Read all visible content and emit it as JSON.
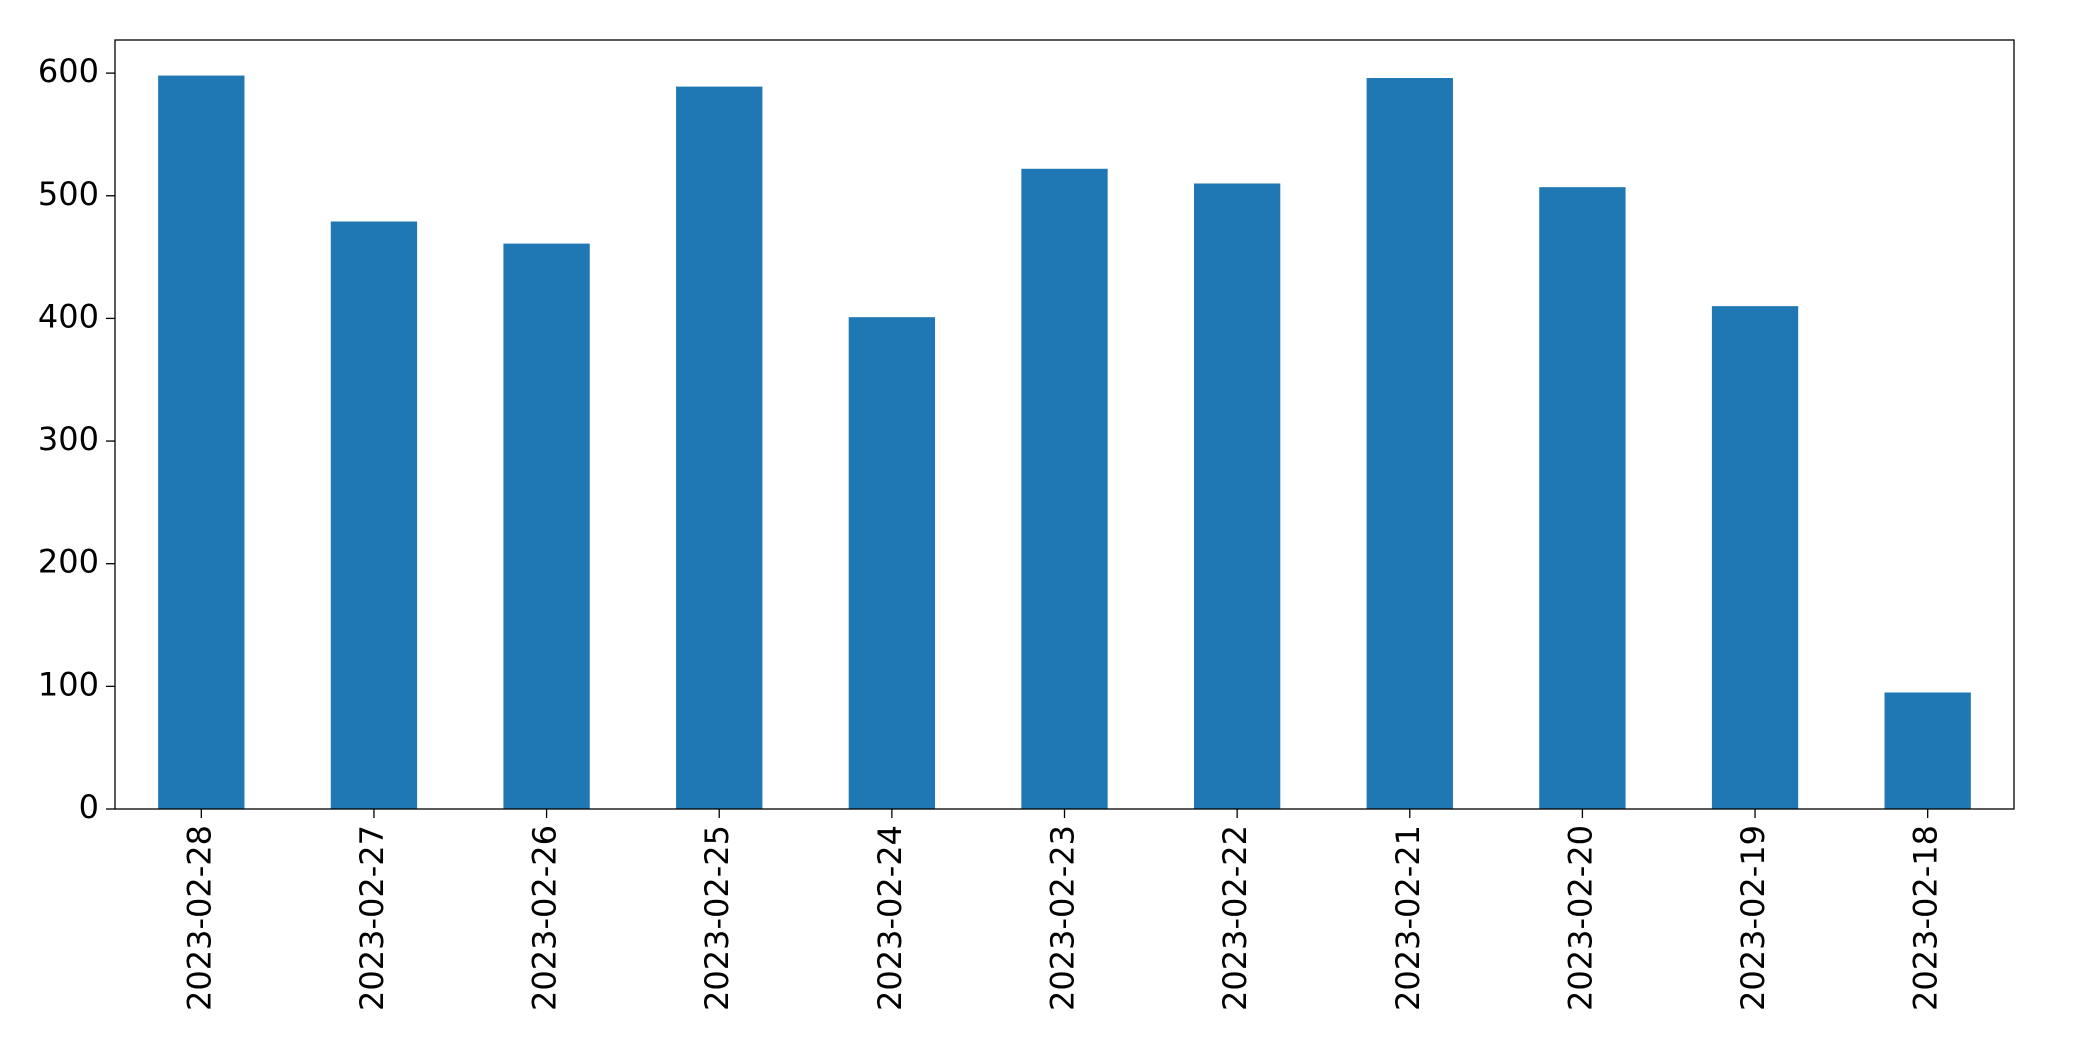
{
  "chart_data": {
    "type": "bar",
    "categories": [
      "2023-02-28",
      "2023-02-27",
      "2023-02-26",
      "2023-02-25",
      "2023-02-24",
      "2023-02-23",
      "2023-02-22",
      "2023-02-21",
      "2023-02-20",
      "2023-02-19",
      "2023-02-18"
    ],
    "values": [
      598,
      479,
      461,
      589,
      401,
      522,
      510,
      596,
      507,
      410,
      95
    ],
    "color": "#1f77b4",
    "ylim": [
      0,
      627
    ],
    "yticks": [
      0,
      100,
      200,
      300,
      400,
      500,
      600
    ],
    "grid": false
  }
}
